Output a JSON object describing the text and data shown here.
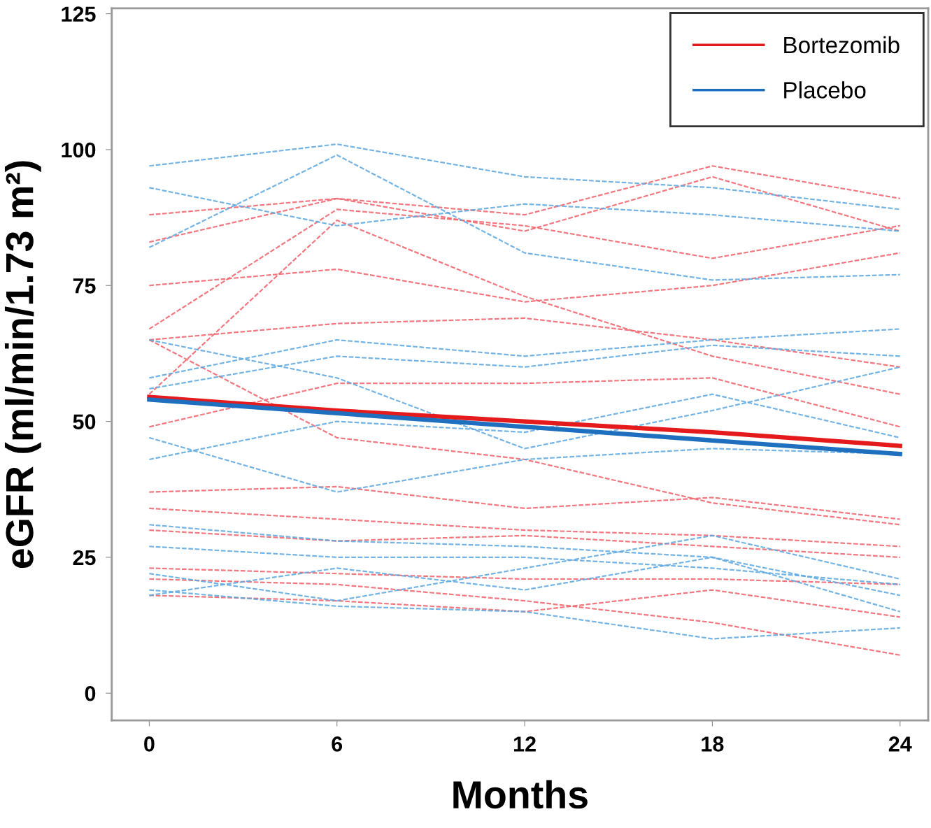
{
  "chart_data": {
    "type": "line",
    "xlabel": "Months",
    "ylabel": "eGFR (ml/min/1.73 m²)",
    "x": [
      0,
      6,
      12,
      18,
      24
    ],
    "xlim": [
      -1.2,
      24.9
    ],
    "xticks": [
      0,
      6,
      12,
      18,
      24
    ],
    "ylim": [
      -5,
      126
    ],
    "yticks": [
      0,
      25,
      50,
      75,
      100,
      125
    ],
    "grid": false,
    "legend": "top right",
    "marker": "none",
    "series": [
      {
        "color": "#f0606a",
        "line_style": "dashed",
        "values": [
          83,
          91,
          88,
          97,
          91
        ]
      },
      {
        "color": "#f0606a",
        "line_style": "dashed",
        "values": [
          75,
          78,
          72,
          75,
          81
        ]
      },
      {
        "color": "#f0606a",
        "line_style": "dashed",
        "values": [
          67,
          89,
          86,
          80,
          86
        ]
      },
      {
        "color": "#f0606a",
        "line_style": "dashed",
        "values": [
          65,
          68,
          69,
          65,
          60
        ]
      },
      {
        "color": "#f0606a",
        "line_style": "dashed",
        "values": [
          55,
          87,
          73,
          62,
          55
        ]
      },
      {
        "color": "#f0606a",
        "line_style": "dashed",
        "values": [
          49,
          57,
          57,
          58,
          49
        ]
      },
      {
        "color": "#f0606a",
        "line_style": "dashed",
        "values": [
          37,
          38,
          34,
          36,
          32
        ]
      },
      {
        "color": "#f0606a",
        "line_style": "dashed",
        "values": [
          34,
          32,
          30,
          29,
          27
        ]
      },
      {
        "color": "#f0606a",
        "line_style": "dashed",
        "values": [
          30,
          28,
          29,
          27,
          25
        ]
      },
      {
        "color": "#f0606a",
        "line_style": "dashed",
        "values": [
          23,
          22,
          21,
          21,
          20
        ]
      },
      {
        "color": "#f0606a",
        "line_style": "dashed",
        "values": [
          21,
          20,
          17,
          13,
          7
        ]
      },
      {
        "color": "#f0606a",
        "line_style": "dashed",
        "values": [
          18,
          17,
          15,
          19,
          14
        ]
      },
      {
        "color": "#f0606a",
        "line_style": "dashed",
        "values": [
          88,
          91,
          85,
          95,
          85
        ]
      },
      {
        "color": "#f0606a",
        "line_style": "dashed",
        "values": [
          65,
          47,
          43,
          35,
          31
        ]
      },
      {
        "color": "#5aa7e0",
        "line_style": "dashed",
        "values": [
          97,
          101,
          95,
          93,
          89
        ]
      },
      {
        "color": "#5aa7e0",
        "line_style": "dashed",
        "values": [
          93,
          86,
          90,
          88,
          85
        ]
      },
      {
        "color": "#5aa7e0",
        "line_style": "dashed",
        "values": [
          82,
          99,
          81,
          76,
          77
        ]
      },
      {
        "color": "#5aa7e0",
        "line_style": "dashed",
        "values": [
          58,
          65,
          62,
          65,
          67
        ]
      },
      {
        "color": "#5aa7e0",
        "line_style": "dashed",
        "values": [
          56,
          62,
          60,
          64,
          62
        ]
      },
      {
        "color": "#5aa7e0",
        "line_style": "dashed",
        "values": [
          47,
          37,
          43,
          45,
          44
        ]
      },
      {
        "color": "#5aa7e0",
        "line_style": "dashed",
        "values": [
          43,
          50,
          48,
          55,
          47
        ]
      },
      {
        "color": "#5aa7e0",
        "line_style": "dashed",
        "values": [
          27,
          25,
          25,
          23,
          20
        ]
      },
      {
        "color": "#5aa7e0",
        "line_style": "dashed",
        "values": [
          22,
          17,
          23,
          29,
          21
        ]
      },
      {
        "color": "#5aa7e0",
        "line_style": "dashed",
        "values": [
          19,
          16,
          15,
          10,
          12
        ]
      },
      {
        "color": "#5aa7e0",
        "line_style": "dashed",
        "values": [
          18,
          23,
          19,
          25,
          18
        ]
      },
      {
        "color": "#5aa7e0",
        "line_style": "dashed",
        "values": [
          31,
          28,
          27,
          25,
          15
        ]
      },
      {
        "color": "#5aa7e0",
        "line_style": "dashed",
        "values": [
          65,
          58,
          45,
          52,
          60
        ]
      },
      {
        "name": "Bortezomib",
        "color": "#e41a1c",
        "line_style": "solid",
        "values": [
          54.5,
          52,
          50,
          48,
          45.5
        ]
      },
      {
        "name": "Placebo",
        "color": "#1f6fbf",
        "line_style": "solid",
        "values": [
          54,
          51.5,
          49,
          46.5,
          44
        ]
      }
    ]
  }
}
